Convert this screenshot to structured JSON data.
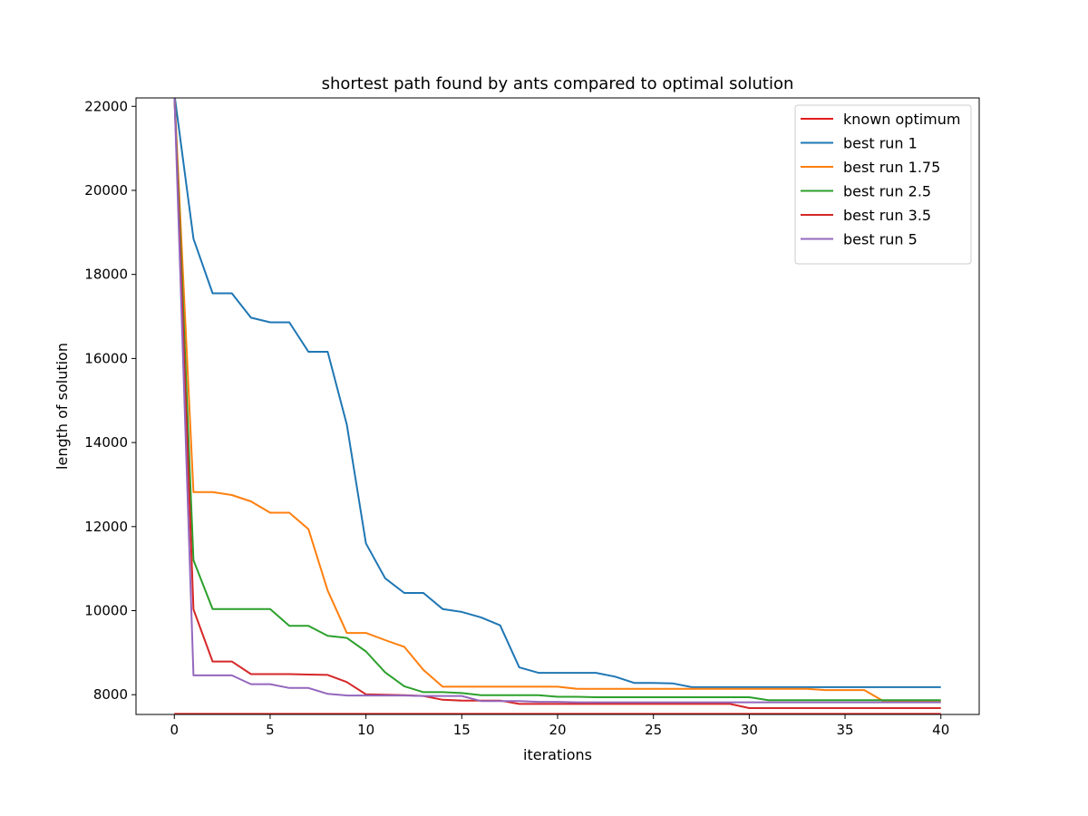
{
  "chart_data": {
    "type": "line",
    "title": "shortest path found by ants compared to optimal solution",
    "xlabel": "iterations",
    "ylabel": "length of solution",
    "xlim": [
      -2,
      42
    ],
    "ylim": [
      7530,
      22200
    ],
    "xticks": [
      0,
      5,
      10,
      15,
      20,
      25,
      30,
      35,
      40
    ],
    "yticks": [
      8000,
      10000,
      12000,
      14000,
      16000,
      18000,
      20000,
      22000
    ],
    "grid": false,
    "legend_position": "top-right",
    "series": [
      {
        "name": "known optimum",
        "color": "#e41a1c",
        "x": [
          0,
          40
        ],
        "values": [
          7542,
          7542
        ]
      },
      {
        "name": "best run 1",
        "color": "#1f77b4",
        "x": [
          0,
          1,
          2,
          3,
          4,
          5,
          6,
          7,
          8,
          9,
          10,
          11,
          12,
          13,
          14,
          15,
          16,
          17,
          18,
          19,
          20,
          21,
          22,
          23,
          24,
          25,
          26,
          27,
          28,
          29,
          30,
          31,
          32,
          33,
          34,
          35,
          36,
          37,
          38,
          39,
          40
        ],
        "values": [
          22300,
          18850,
          17550,
          17550,
          16970,
          16860,
          16860,
          16160,
          16160,
          14430,
          11600,
          10770,
          10420,
          10420,
          10040,
          9970,
          9840,
          9650,
          8650,
          8520,
          8520,
          8520,
          8520,
          8430,
          8280,
          8280,
          8270,
          8180,
          8180,
          8180,
          8180,
          8180,
          8180,
          8180,
          8180,
          8180,
          8180,
          8180,
          8180,
          8180,
          8180
        ]
      },
      {
        "name": "best run 1.75",
        "color": "#ff7f0e",
        "x": [
          0,
          1,
          2,
          3,
          4,
          5,
          6,
          7,
          8,
          9,
          10,
          11,
          12,
          13,
          14,
          15,
          16,
          17,
          18,
          19,
          20,
          21,
          22,
          23,
          24,
          25,
          26,
          27,
          28,
          29,
          30,
          31,
          32,
          33,
          34,
          35,
          36,
          37,
          38,
          39,
          40
        ],
        "values": [
          22300,
          12820,
          12820,
          12750,
          12600,
          12330,
          12330,
          11940,
          10480,
          9470,
          9470,
          9300,
          9140,
          8590,
          8190,
          8190,
          8190,
          8190,
          8190,
          8190,
          8190,
          8140,
          8140,
          8140,
          8140,
          8140,
          8140,
          8140,
          8140,
          8140,
          8140,
          8140,
          8140,
          8140,
          8110,
          8110,
          8110,
          7850,
          7850,
          7850,
          7850
        ]
      },
      {
        "name": "best run 2.5",
        "color": "#2ca02c",
        "x": [
          0,
          1,
          2,
          3,
          4,
          5,
          6,
          7,
          8,
          9,
          10,
          11,
          12,
          13,
          14,
          15,
          16,
          17,
          18,
          19,
          20,
          21,
          22,
          23,
          24,
          25,
          26,
          27,
          28,
          29,
          30,
          31,
          32,
          33,
          34,
          35,
          36,
          37,
          38,
          39,
          40
        ],
        "values": [
          22300,
          11200,
          10040,
          10040,
          10040,
          10040,
          9640,
          9640,
          9400,
          9350,
          9030,
          8530,
          8200,
          8060,
          8060,
          8040,
          7990,
          7990,
          7990,
          7990,
          7950,
          7950,
          7940,
          7940,
          7940,
          7940,
          7940,
          7940,
          7940,
          7940,
          7940,
          7870,
          7870,
          7870,
          7870,
          7870,
          7870,
          7870,
          7870,
          7870,
          7870
        ]
      },
      {
        "name": "best run 3.5",
        "color": "#d62728",
        "x": [
          0,
          1,
          2,
          3,
          4,
          5,
          6,
          7,
          8,
          9,
          10,
          11,
          12,
          13,
          14,
          15,
          16,
          17,
          18,
          19,
          20,
          21,
          22,
          23,
          24,
          25,
          26,
          27,
          28,
          29,
          30,
          31,
          32,
          33,
          34,
          35,
          36,
          37,
          38,
          39,
          40
        ],
        "values": [
          22300,
          10030,
          8790,
          8790,
          8490,
          8490,
          8490,
          8480,
          8470,
          8300,
          8010,
          8000,
          7990,
          7970,
          7880,
          7860,
          7860,
          7860,
          7780,
          7780,
          7780,
          7780,
          7780,
          7780,
          7780,
          7780,
          7780,
          7780,
          7780,
          7780,
          7680,
          7680,
          7680,
          7680,
          7680,
          7680,
          7680,
          7680,
          7680,
          7680,
          7680
        ]
      },
      {
        "name": "best run 5",
        "color": "#9467bd",
        "x": [
          0,
          1,
          2,
          3,
          4,
          5,
          6,
          7,
          8,
          9,
          10,
          11,
          12,
          13,
          14,
          15,
          16,
          17,
          18,
          19,
          20,
          21,
          22,
          23,
          24,
          25,
          26,
          27,
          28,
          29,
          30,
          31,
          32,
          33,
          34,
          35,
          36,
          37,
          38,
          39,
          40
        ],
        "values": [
          22300,
          8460,
          8460,
          8460,
          8250,
          8250,
          8160,
          8160,
          8020,
          7980,
          7980,
          7980,
          7980,
          7970,
          7970,
          7970,
          7850,
          7850,
          7850,
          7830,
          7830,
          7820,
          7820,
          7820,
          7820,
          7820,
          7820,
          7820,
          7820,
          7820,
          7820,
          7820,
          7820,
          7820,
          7820,
          7820,
          7820,
          7820,
          7820,
          7820,
          7820
        ]
      }
    ]
  }
}
